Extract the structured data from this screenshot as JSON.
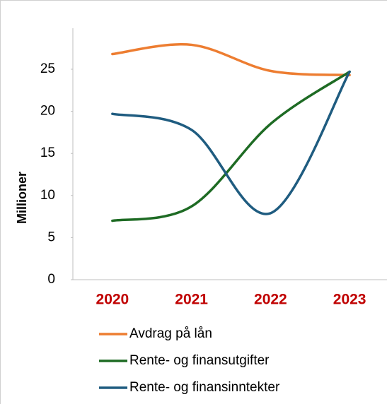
{
  "chart_data": {
    "type": "line",
    "smooth": true,
    "y_axis_label": "Millioner",
    "categories": [
      "2020",
      "2021",
      "2022",
      "2023"
    ],
    "series": [
      {
        "name": "Avdrag på lån",
        "color": "#ed7d31",
        "values": [
          26.8,
          27.9,
          24.8,
          24.3
        ]
      },
      {
        "name": "Rente- og finansutgifter",
        "color": "#1e6b24",
        "values": [
          7.0,
          8.7,
          18.5,
          24.7
        ]
      },
      {
        "name": "Rente- og finansinntekter",
        "color": "#1f5c80",
        "values": [
          19.7,
          17.8,
          7.9,
          24.7
        ]
      }
    ],
    "ylim": [
      0,
      30
    ],
    "yticks": [
      0,
      5,
      10,
      15,
      20,
      25
    ],
    "category_color": "#c00000"
  }
}
